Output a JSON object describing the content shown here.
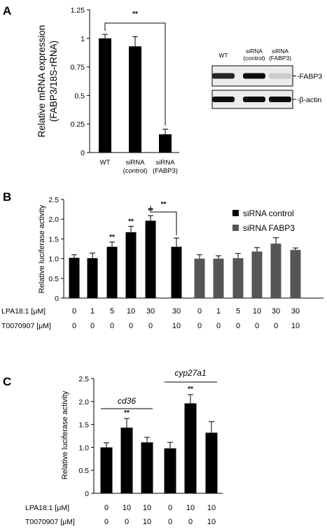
{
  "figure": {
    "panels": [
      {
        "id": "A",
        "label": "A"
      },
      {
        "id": "B",
        "label": "B"
      },
      {
        "id": "C",
        "label": "C"
      }
    ],
    "blot": {
      "lane_labels": [
        {
          "line1": "WT",
          "line2": ""
        },
        {
          "line1": "siRNA",
          "line2": "(control)"
        },
        {
          "line1": "siRNA",
          "line2": "(FABP3)"
        }
      ],
      "rows": [
        {
          "label": "FABP3",
          "intensity": [
            0.85,
            0.95,
            0.2
          ]
        },
        {
          "label": "β-actin",
          "intensity": [
            0.95,
            0.95,
            0.95
          ]
        }
      ]
    }
  },
  "chart_data": [
    {
      "type": "bar",
      "panel": "A",
      "ylabel_line1": "Relative mRNA expression",
      "ylabel_line2": "(FABP3/18S-rRNA)",
      "ylim": [
        0,
        1.25
      ],
      "yticks": [
        "0",
        "0.25",
        "0.5",
        "0.75",
        "1",
        "1.25"
      ],
      "categories": [
        {
          "line1": "WT",
          "line2": ""
        },
        {
          "line1": "siRNA",
          "line2": "(control)"
        },
        {
          "line1": "siRNA",
          "line2": "(FABP3)"
        }
      ],
      "values": [
        1.0,
        0.93,
        0.16
      ],
      "errors": [
        0.035,
        0.085,
        0.045
      ],
      "color": "#000000",
      "significance": [
        {
          "from": 0,
          "to": 2,
          "label": "**"
        }
      ]
    },
    {
      "type": "bar",
      "panel": "B",
      "ylabel": "Relative luciferase activity",
      "ylim": [
        0,
        2.5
      ],
      "yticks": [
        "0",
        "0.5",
        "1.0",
        "1.5",
        "2.0",
        "2.5"
      ],
      "legend": [
        {
          "name": "siRNA control",
          "color": "#000000"
        },
        {
          "name": "siRNA FABP3",
          "color": "#555555"
        }
      ],
      "series": [
        {
          "name": "siRNA control",
          "color": "#000000",
          "values": [
            1.02,
            1.01,
            1.3,
            1.67,
            1.96,
            1.3
          ],
          "errors": [
            0.08,
            0.13,
            0.12,
            0.15,
            0.13,
            0.22
          ],
          "sig": [
            "",
            "",
            "**",
            "**",
            "**",
            ""
          ]
        },
        {
          "name": "siRNA FABP3",
          "color": "#555555",
          "values": [
            1.0,
            1.0,
            1.01,
            1.18,
            1.38,
            1.22
          ],
          "errors": [
            0.1,
            0.07,
            0.12,
            0.1,
            0.15,
            0.05
          ],
          "sig": [
            "",
            "",
            "",
            "",
            "",
            ""
          ]
        }
      ],
      "row_labels": [
        "LPA18:1 [μM]",
        "T0070907 [μM]"
      ],
      "rows": [
        [
          "0",
          "1",
          "5",
          "10",
          "30",
          "30",
          "0",
          "1",
          "5",
          "10",
          "30",
          "30"
        ],
        [
          "0",
          "0",
          "0",
          "0",
          "0",
          "10",
          "0",
          "0",
          "0",
          "0",
          "0",
          "10"
        ]
      ],
      "significance": [
        {
          "from": 4,
          "to": 5,
          "label": "**"
        }
      ]
    },
    {
      "type": "bar",
      "panel": "C",
      "ylabel": "Relative luciferase activity",
      "ylim": [
        0,
        2.5
      ],
      "yticks": [
        "0",
        "0.5",
        "1.0",
        "1.5",
        "2.0",
        "2.5"
      ],
      "groups": [
        "cd36",
        "cyp27a1"
      ],
      "values": [
        1.0,
        1.43,
        1.11,
        0.98,
        1.96,
        1.32
      ],
      "errors": [
        0.1,
        0.2,
        0.11,
        0.13,
        0.19,
        0.24
      ],
      "sig": [
        "",
        "**",
        "",
        "",
        "**",
        ""
      ],
      "color": "#000000",
      "row_labels": [
        "LPA18:1 [μM]",
        "T0070907 [μM]"
      ],
      "rows": [
        [
          "0",
          "10",
          "10",
          "0",
          "10",
          "10"
        ],
        [
          "0",
          "0",
          "10",
          "0",
          "0",
          "10"
        ]
      ]
    }
  ]
}
